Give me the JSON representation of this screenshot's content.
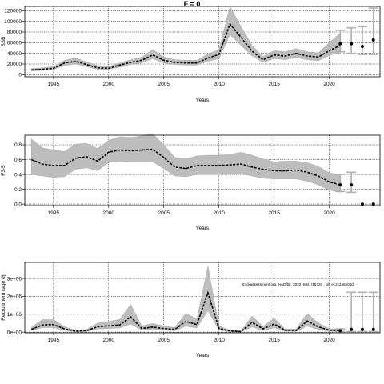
{
  "title": "F = 0",
  "annotation": "stockassessment.org, HADfbk_2022_test, r15720 , git: ec2c2a6b0dd",
  "chart_data": [
    {
      "type": "line",
      "name": "ssb",
      "ylabel": "SSB",
      "xlabel": "Years",
      "xlim": [
        1992.4,
        2024.6
      ],
      "ylim": [
        -4000,
        128000
      ],
      "xticks": [
        1995,
        2000,
        2005,
        2010,
        2015,
        2020
      ],
      "yticks": [
        0,
        20000,
        40000,
        60000,
        80000,
        100000,
        120000
      ],
      "ytick_labels": [
        "0",
        "20000",
        "40000",
        "60000",
        "80000",
        "100000",
        "120000"
      ],
      "grid": true,
      "x": [
        1993,
        1994,
        1995,
        1996,
        1997,
        1998,
        1999,
        2000,
        2001,
        2002,
        2003,
        2004,
        2005,
        2006,
        2007,
        2008,
        2009,
        2010,
        2011,
        2012,
        2013,
        2014,
        2015,
        2016,
        2017,
        2018,
        2019,
        2020,
        2021
      ],
      "estimate": [
        9000,
        10000,
        12000,
        22000,
        25000,
        19000,
        13000,
        12000,
        18000,
        23000,
        27000,
        37000,
        27000,
        23000,
        22000,
        22000,
        31000,
        38000,
        95000,
        70000,
        44000,
        28000,
        37000,
        35000,
        40000,
        35000,
        33000,
        45000,
        55000
      ],
      "lower": [
        7000,
        8000,
        10000,
        17000,
        20000,
        15000,
        10000,
        10000,
        14000,
        19000,
        22000,
        30000,
        22000,
        19000,
        18000,
        18000,
        25000,
        30000,
        75000,
        55000,
        35000,
        23000,
        30000,
        28000,
        32000,
        28000,
        26000,
        36000,
        42000
      ],
      "upper": [
        11000,
        13000,
        15000,
        27000,
        31000,
        24000,
        17000,
        15000,
        22000,
        28000,
        33000,
        47000,
        33000,
        28000,
        27000,
        27000,
        39000,
        47000,
        128000,
        90000,
        55000,
        34000,
        45000,
        43000,
        49000,
        43000,
        41000,
        60000,
        78000
      ],
      "projection": {
        "x": [
          2021,
          2022,
          2023,
          2024
        ],
        "median": [
          58000,
          58000,
          53000,
          65000
        ],
        "lower": [
          43000,
          40000,
          38000,
          38000
        ],
        "upper": [
          83000,
          88000,
          90000,
          125000
        ]
      }
    },
    {
      "type": "line",
      "name": "fbar",
      "ylabel": "F3-5",
      "xlabel": "Years",
      "xlim": [
        1992.4,
        2024.6
      ],
      "ylim": [
        -0.02,
        0.93
      ],
      "xticks": [
        1995,
        2000,
        2005,
        2010,
        2015,
        2020
      ],
      "yticks": [
        0,
        0.2,
        0.4,
        0.6,
        0.8
      ],
      "ytick_labels": [
        "0.0",
        "0.2",
        "0.4",
        "0.6",
        "0.8"
      ],
      "grid": true,
      "x": [
        1993,
        1994,
        1995,
        1996,
        1997,
        1998,
        1999,
        2000,
        2001,
        2002,
        2003,
        2004,
        2005,
        2006,
        2007,
        2008,
        2009,
        2010,
        2011,
        2012,
        2013,
        2014,
        2015,
        2016,
        2017,
        2018,
        2019,
        2020,
        2021
      ],
      "estimate": [
        0.6,
        0.54,
        0.52,
        0.52,
        0.62,
        0.64,
        0.58,
        0.7,
        0.73,
        0.72,
        0.73,
        0.74,
        0.63,
        0.5,
        0.48,
        0.52,
        0.52,
        0.52,
        0.53,
        0.54,
        0.5,
        0.47,
        0.45,
        0.45,
        0.46,
        0.43,
        0.38,
        0.3,
        0.26
      ],
      "lower": [
        0.4,
        0.38,
        0.36,
        0.37,
        0.47,
        0.49,
        0.45,
        0.56,
        0.58,
        0.57,
        0.57,
        0.57,
        0.48,
        0.38,
        0.37,
        0.4,
        0.4,
        0.4,
        0.41,
        0.41,
        0.38,
        0.35,
        0.34,
        0.34,
        0.34,
        0.31,
        0.26,
        0.19,
        0.16
      ],
      "upper": [
        0.88,
        0.76,
        0.73,
        0.71,
        0.81,
        0.82,
        0.75,
        0.86,
        0.91,
        0.9,
        0.92,
        0.95,
        0.8,
        0.63,
        0.61,
        0.65,
        0.66,
        0.66,
        0.67,
        0.7,
        0.66,
        0.61,
        0.57,
        0.58,
        0.58,
        0.56,
        0.51,
        0.42,
        0.4
      ],
      "projection": {
        "x": [
          2021,
          2022,
          2023,
          2024
        ],
        "median": [
          0.26,
          0.26,
          0.0,
          0.0
        ],
        "lower": [
          0.17,
          0.16,
          0.0,
          0.0
        ],
        "upper": [
          0.4,
          0.43,
          0.0,
          0.0
        ]
      }
    },
    {
      "type": "line",
      "name": "recruitment",
      "ylabel": "Recruitment (age 0)",
      "xlabel": "Years",
      "xlim": [
        1992.4,
        2024.6
      ],
      "ylim": [
        -40000,
        3900000
      ],
      "xticks": [
        1995,
        2000,
        2005,
        2010,
        2015,
        2020
      ],
      "yticks": [
        0,
        1000000,
        2000000,
        3000000
      ],
      "ytick_labels": [
        "0e+00",
        "1e+06",
        "2e+06",
        "3e+06"
      ],
      "grid": true,
      "x": [
        1993,
        1994,
        1995,
        1996,
        1997,
        1998,
        1999,
        2000,
        2001,
        2002,
        2003,
        2004,
        2005,
        2006,
        2007,
        2008,
        2009,
        2010,
        2011,
        2012,
        2013,
        2014,
        2015,
        2016,
        2017,
        2018,
        2019,
        2020,
        2021
      ],
      "estimate": [
        150000,
        400000,
        420000,
        180000,
        50000,
        80000,
        300000,
        350000,
        400000,
        850000,
        200000,
        280000,
        200000,
        150000,
        600000,
        420000,
        2200000,
        200000,
        60000,
        30000,
        550000,
        180000,
        450000,
        100000,
        90000,
        620000,
        300000,
        100000,
        80000
      ],
      "lower": [
        90000,
        250000,
        250000,
        100000,
        20000,
        40000,
        180000,
        200000,
        230000,
        450000,
        110000,
        160000,
        110000,
        80000,
        330000,
        230000,
        1200000,
        110000,
        30000,
        10000,
        290000,
        90000,
        240000,
        50000,
        40000,
        330000,
        160000,
        50000,
        30000
      ],
      "upper": [
        280000,
        700000,
        700000,
        300000,
        100000,
        150000,
        500000,
        600000,
        700000,
        1550000,
        350000,
        480000,
        340000,
        260000,
        1050000,
        730000,
        3700000,
        340000,
        110000,
        60000,
        900000,
        320000,
        780000,
        180000,
        170000,
        1050000,
        520000,
        190000,
        180000
      ],
      "projection": {
        "x": [
          2021,
          2022,
          2023,
          2024
        ],
        "median": [
          80000,
          150000,
          150000,
          150000
        ],
        "lower": [
          30000,
          30000,
          30000,
          30000
        ],
        "upper": [
          180000,
          2230000,
          2230000,
          2230000
        ]
      }
    }
  ]
}
